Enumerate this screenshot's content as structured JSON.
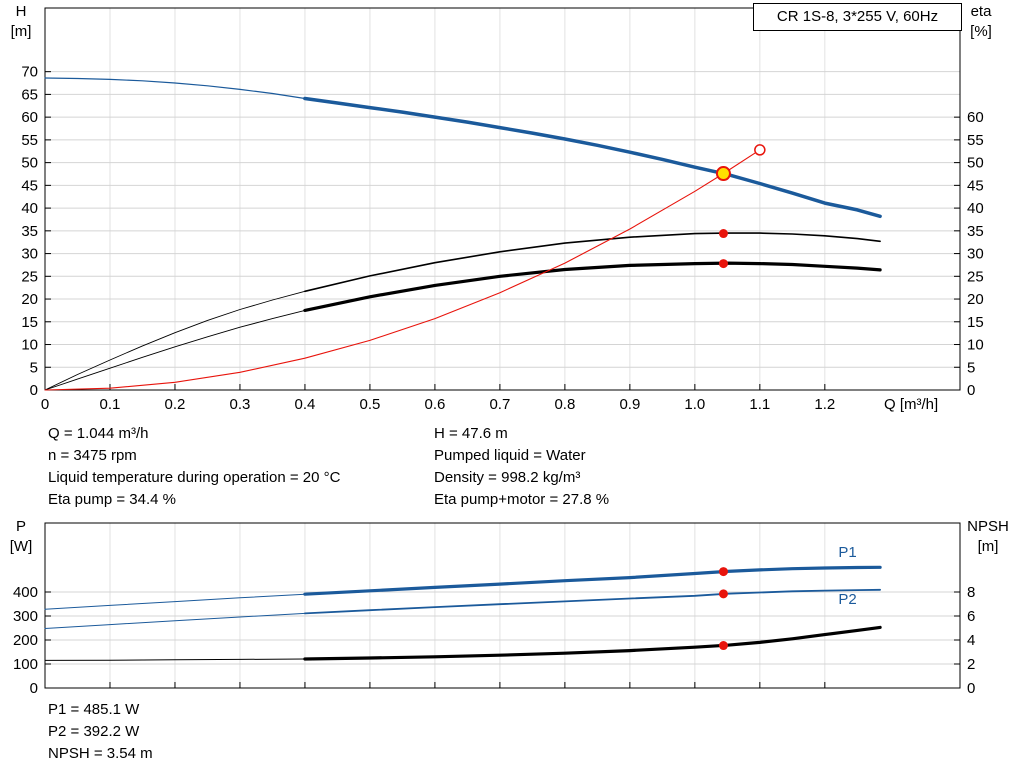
{
  "header": {
    "model": "CR 1S-8, 3*255 V, 60Hz"
  },
  "axis_corners": {
    "h": {
      "sym": "H",
      "unit": "[m]"
    },
    "eta": {
      "sym": "eta",
      "unit": "[%]"
    },
    "p": {
      "sym": "P",
      "unit": "[W]"
    },
    "npsh": {
      "sym": "NPSH",
      "unit": "[m]"
    }
  },
  "x_axis_title": "Q [m³/h]",
  "operating_info": {
    "left": [
      "Q = 1.044 m³/h",
      "n = 3475 rpm",
      "Liquid temperature during operation = 20 °C",
      "Eta pump = 34.4 %"
    ],
    "right": [
      "H = 47.6 m",
      "Pumped liquid = Water",
      "Density = 998.2 kg/m³",
      "Eta pump+motor = 27.8 %"
    ]
  },
  "results": [
    "P1 = 485.1 W",
    "P2 = 392.2 W",
    "NPSH = 3.54 m"
  ],
  "colors": {
    "blue": "#1b5a9b",
    "red": "#e8140c",
    "black": "#000000",
    "yellow": "#ffdf00",
    "grid_h": "#d4d4d4",
    "grid_v": "#e2e2e2"
  },
  "chart_data": [
    {
      "type": "line",
      "name": "qh-eta-chart",
      "title": "CR 1S-8, 3*255 V, 60Hz",
      "xlabel": "Q [m³/h]",
      "ylabel_left": "H [m]",
      "ylabel_right": "eta [%]",
      "x_range": [
        0,
        1.408
      ],
      "left_range": [
        0,
        84
      ],
      "right_range": [
        0,
        84
      ],
      "x_ticks": [
        "0",
        "0.1",
        "0.2",
        "0.3",
        "0.4",
        "0.5",
        "0.6",
        "0.7",
        "0.8",
        "0.9",
        "1.0",
        "1.1",
        "1.2"
      ],
      "left_ticks": [
        0,
        5,
        10,
        15,
        20,
        25,
        30,
        35,
        40,
        45,
        50,
        55,
        60,
        65,
        70
      ],
      "right_ticks": [
        0,
        5,
        10,
        15,
        20,
        25,
        30,
        35,
        40,
        45,
        50,
        55,
        60
      ],
      "series": [
        {
          "name": "head-curve-low",
          "axis": "left",
          "color": "blue",
          "width": 1.2,
          "points": [
            [
              0,
              68.6
            ],
            [
              0.05,
              68.5
            ],
            [
              0.1,
              68.3
            ],
            [
              0.15,
              68.0
            ],
            [
              0.2,
              67.5
            ],
            [
              0.25,
              66.9
            ],
            [
              0.3,
              66.1
            ],
            [
              0.35,
              65.2
            ],
            [
              0.4,
              64.1
            ]
          ]
        },
        {
          "name": "head-curve",
          "axis": "left",
          "color": "blue",
          "width": 3.5,
          "points": [
            [
              0.4,
              64.1
            ],
            [
              0.45,
              63.1
            ],
            [
              0.5,
              62.1
            ],
            [
              0.55,
              61.1
            ],
            [
              0.6,
              60.0
            ],
            [
              0.65,
              58.9
            ],
            [
              0.7,
              57.7
            ],
            [
              0.75,
              56.5
            ],
            [
              0.8,
              55.2
            ],
            [
              0.85,
              53.8
            ],
            [
              0.9,
              52.3
            ],
            [
              0.95,
              50.7
            ],
            [
              1.0,
              49.0
            ],
            [
              1.05,
              47.4
            ],
            [
              1.1,
              45.4
            ],
            [
              1.15,
              43.3
            ],
            [
              1.2,
              41.1
            ],
            [
              1.25,
              39.6
            ],
            [
              1.285,
              38.2
            ]
          ]
        },
        {
          "name": "eta-pump-curve-low",
          "axis": "right",
          "color": "black",
          "width": 0.9,
          "points": [
            [
              0,
              0
            ],
            [
              0.05,
              3.4
            ],
            [
              0.1,
              6.6
            ],
            [
              0.15,
              9.7
            ],
            [
              0.2,
              12.6
            ],
            [
              0.25,
              15.3
            ],
            [
              0.3,
              17.7
            ],
            [
              0.35,
              19.8
            ],
            [
              0.4,
              21.7
            ]
          ]
        },
        {
          "name": "eta-pump-curve",
          "axis": "right",
          "color": "black",
          "width": 1.6,
          "points": [
            [
              0.4,
              21.7
            ],
            [
              0.5,
              25.1
            ],
            [
              0.6,
              28.0
            ],
            [
              0.7,
              30.4
            ],
            [
              0.8,
              32.3
            ],
            [
              0.9,
              33.6
            ],
            [
              1.0,
              34.4
            ],
            [
              1.05,
              34.5
            ],
            [
              1.1,
              34.5
            ],
            [
              1.15,
              34.3
            ],
            [
              1.2,
              33.9
            ],
            [
              1.25,
              33.3
            ],
            [
              1.285,
              32.7
            ]
          ]
        },
        {
          "name": "eta-pump-motor-curve-low",
          "axis": "right",
          "color": "black",
          "width": 0.9,
          "points": [
            [
              0,
              0
            ],
            [
              0.05,
              2.4
            ],
            [
              0.1,
              4.8
            ],
            [
              0.15,
              7.2
            ],
            [
              0.2,
              9.5
            ],
            [
              0.25,
              11.7
            ],
            [
              0.3,
              13.8
            ],
            [
              0.35,
              15.7
            ],
            [
              0.4,
              17.5
            ]
          ]
        },
        {
          "name": "eta-pump-motor-curve",
          "axis": "right",
          "color": "black",
          "width": 3.2,
          "points": [
            [
              0.4,
              17.5
            ],
            [
              0.5,
              20.5
            ],
            [
              0.6,
              23.0
            ],
            [
              0.7,
              25.0
            ],
            [
              0.8,
              26.5
            ],
            [
              0.9,
              27.4
            ],
            [
              1.0,
              27.8
            ],
            [
              1.05,
              27.9
            ],
            [
              1.1,
              27.8
            ],
            [
              1.15,
              27.6
            ],
            [
              1.2,
              27.2
            ],
            [
              1.25,
              26.8
            ],
            [
              1.285,
              26.4
            ]
          ]
        },
        {
          "name": "system-curve",
          "axis": "left",
          "color": "red",
          "width": 1.1,
          "points": [
            [
              0,
              0
            ],
            [
              0.1,
              0.4
            ],
            [
              0.2,
              1.7
            ],
            [
              0.3,
              3.9
            ],
            [
              0.4,
              7.0
            ],
            [
              0.5,
              10.9
            ],
            [
              0.6,
              15.7
            ],
            [
              0.7,
              21.4
            ],
            [
              0.8,
              27.9
            ],
            [
              0.9,
              35.4
            ],
            [
              1.0,
              43.7
            ],
            [
              1.044,
              47.6
            ],
            [
              1.1,
              52.8
            ]
          ]
        }
      ],
      "markers": [
        {
          "name": "duty-point-marker",
          "type": "duty",
          "axis": "left",
          "q": 1.044,
          "v": 47.6
        },
        {
          "name": "system-extension-marker",
          "type": "open",
          "axis": "left",
          "q": 1.1,
          "v": 52.8
        },
        {
          "name": "eta-pump-marker",
          "type": "dot",
          "axis": "right",
          "q": 1.044,
          "v": 34.4
        },
        {
          "name": "eta-pump-motor-marker",
          "type": "dot",
          "axis": "right",
          "q": 1.044,
          "v": 27.8
        }
      ],
      "labels": []
    },
    {
      "type": "line",
      "name": "power-npsh-chart",
      "xlabel": "",
      "ylabel_left": "P [W]",
      "ylabel_right": "NPSH [m]",
      "x_range": [
        0,
        1.408
      ],
      "left_range": [
        0,
        687.5
      ],
      "right_range": [
        0,
        13.75
      ],
      "x_ticks": [
        "0",
        "0.1",
        "0.2",
        "0.3",
        "0.4",
        "0.5",
        "0.6",
        "0.7",
        "0.8",
        "0.9",
        "1.0",
        "1.1",
        "1.2"
      ],
      "left_ticks": [
        0,
        100,
        200,
        300,
        400
      ],
      "right_ticks": [
        0,
        2,
        4,
        6,
        8
      ],
      "series": [
        {
          "name": "p1-curve-low",
          "axis": "left",
          "color": "blue",
          "width": 1,
          "points": [
            [
              0,
              328
            ],
            [
              0.1,
              344
            ],
            [
              0.2,
              360
            ],
            [
              0.3,
              376
            ],
            [
              0.4,
              391
            ]
          ]
        },
        {
          "name": "p1-curve",
          "axis": "left",
          "color": "blue",
          "width": 3.2,
          "points": [
            [
              0.4,
              391
            ],
            [
              0.5,
              405
            ],
            [
              0.6,
              419
            ],
            [
              0.7,
              433
            ],
            [
              0.8,
              447
            ],
            [
              0.9,
              460
            ],
            [
              1.0,
              477
            ],
            [
              1.05,
              486
            ],
            [
              1.1,
              492
            ],
            [
              1.15,
              497
            ],
            [
              1.2,
              500
            ],
            [
              1.25,
              502
            ],
            [
              1.285,
              503
            ]
          ]
        },
        {
          "name": "p2-curve-low",
          "axis": "left",
          "color": "blue",
          "width": 1,
          "points": [
            [
              0,
              248
            ],
            [
              0.1,
              264
            ],
            [
              0.2,
              280
            ],
            [
              0.3,
              296
            ],
            [
              0.4,
              311
            ]
          ]
        },
        {
          "name": "p2-curve",
          "axis": "left",
          "color": "blue",
          "width": 1.8,
          "points": [
            [
              0.4,
              311
            ],
            [
              0.5,
              324
            ],
            [
              0.6,
              337
            ],
            [
              0.7,
              349
            ],
            [
              0.8,
              361
            ],
            [
              0.9,
              373
            ],
            [
              1.0,
              384
            ],
            [
              1.05,
              393
            ],
            [
              1.1,
              398
            ],
            [
              1.15,
              403
            ],
            [
              1.2,
              406
            ],
            [
              1.25,
              408
            ],
            [
              1.285,
              409
            ]
          ]
        },
        {
          "name": "npsh-curve-low",
          "axis": "right",
          "color": "black",
          "width": 1,
          "points": [
            [
              0,
              2.3
            ],
            [
              0.1,
              2.32
            ],
            [
              0.2,
              2.35
            ],
            [
              0.3,
              2.38
            ],
            [
              0.4,
              2.42
            ]
          ]
        },
        {
          "name": "npsh-curve",
          "axis": "right",
          "color": "black",
          "width": 3.2,
          "points": [
            [
              0.4,
              2.42
            ],
            [
              0.5,
              2.5
            ],
            [
              0.6,
              2.6
            ],
            [
              0.7,
              2.73
            ],
            [
              0.8,
              2.9
            ],
            [
              0.9,
              3.12
            ],
            [
              1.0,
              3.4
            ],
            [
              1.05,
              3.57
            ],
            [
              1.1,
              3.8
            ],
            [
              1.15,
              4.1
            ],
            [
              1.2,
              4.45
            ],
            [
              1.25,
              4.8
            ],
            [
              1.285,
              5.05
            ]
          ]
        }
      ],
      "markers": [
        {
          "name": "p1-marker",
          "type": "dot",
          "axis": "left",
          "q": 1.044,
          "v": 485.1
        },
        {
          "name": "p2-marker",
          "type": "dot",
          "axis": "left",
          "q": 1.044,
          "v": 392.2
        },
        {
          "name": "npsh-marker",
          "type": "dot",
          "axis": "right",
          "q": 1.044,
          "v": 3.54
        }
      ],
      "labels": [
        {
          "text": "P1",
          "q": 1.235,
          "v": 545,
          "axis": "left",
          "color": "blue"
        },
        {
          "text": "P2",
          "q": 1.235,
          "v": 350,
          "axis": "left",
          "color": "blue"
        }
      ]
    }
  ]
}
